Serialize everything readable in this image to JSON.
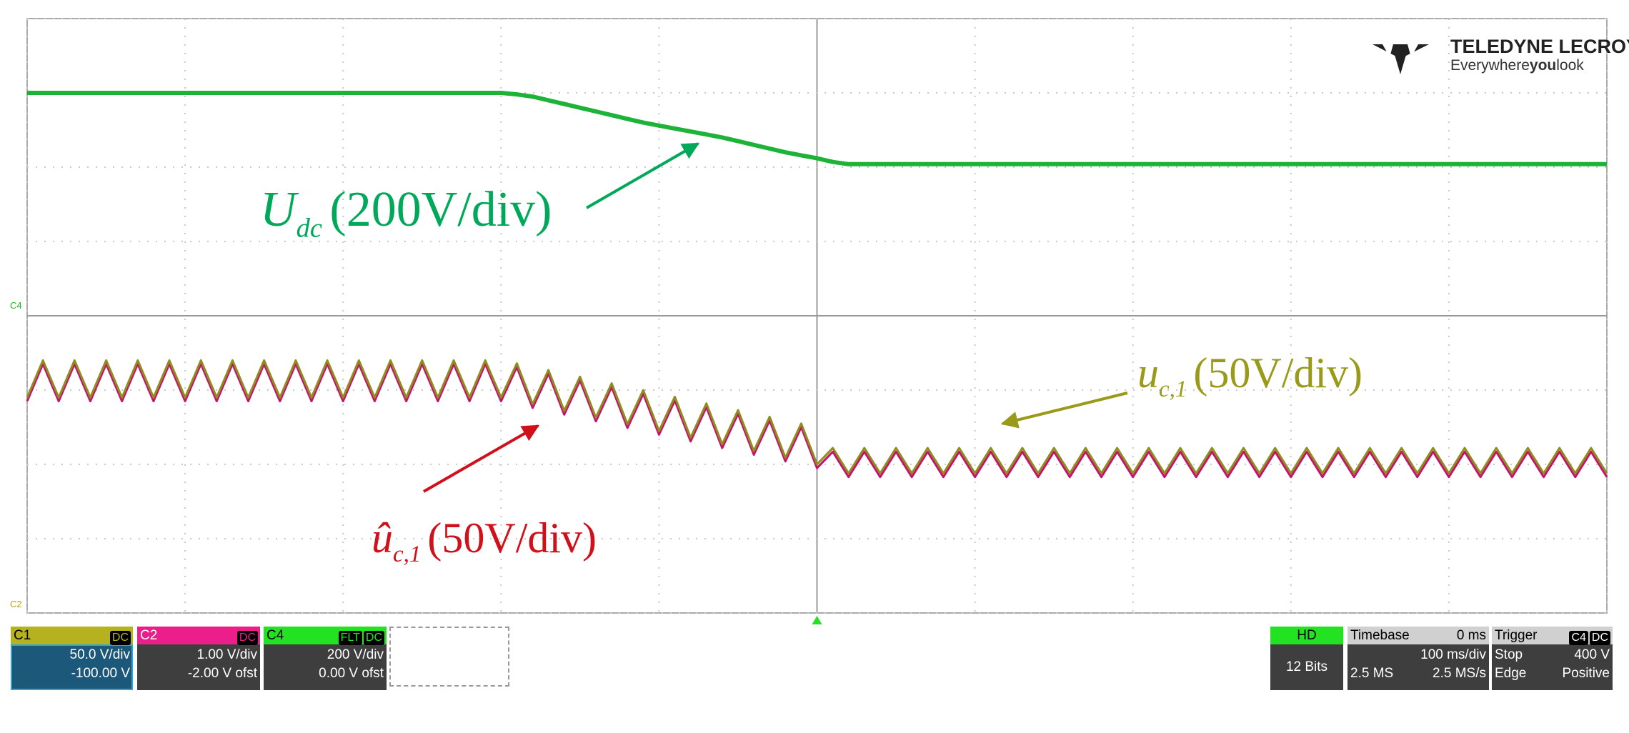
{
  "chart_data": {
    "type": "line",
    "x": [
      0,
      0.1,
      0.2,
      0.3,
      0.4,
      0.5,
      0.6,
      0.7,
      0.8,
      0.9,
      1,
      1.1,
      1.2,
      1.3,
      1.4,
      1.5,
      1.6,
      1.7,
      1.8,
      1.9,
      2,
      2.1,
      2.2,
      2.3,
      2.4,
      2.5,
      2.6,
      2.7,
      2.8,
      2.9,
      3,
      3.1,
      3.2,
      3.3,
      3.4,
      3.5,
      3.6,
      3.7,
      3.8,
      3.9,
      4,
      4.1,
      4.2,
      4.3,
      4.4,
      4.5,
      4.6,
      4.7,
      4.8,
      4.9,
      5,
      5.1,
      5.2,
      5.3,
      5.4,
      5.5,
      5.6,
      5.7,
      5.8,
      5.9,
      6,
      6.1,
      6.2,
      6.3,
      6.4,
      6.5,
      6.6,
      6.7,
      6.8,
      6.9,
      7,
      7.1,
      7.2,
      7.3,
      7.4,
      7.5,
      7.6,
      7.7,
      7.8,
      7.9,
      8,
      8.1,
      8.2,
      8.3,
      8.4,
      8.5,
      8.6,
      8.7,
      8.8,
      8.9,
      9,
      9.1,
      9.2,
      9.3,
      9.4,
      9.5,
      9.6,
      9.7,
      9.8,
      9.9,
      10
    ],
    "series": [
      {
        "color": "#1db338",
        "values": [
          7,
          7,
          7,
          7,
          7,
          7,
          7,
          7,
          7,
          7,
          7,
          7,
          7,
          7,
          7,
          7,
          7,
          7,
          7,
          7,
          7,
          7,
          7,
          7,
          7,
          7,
          7,
          7,
          7,
          7,
          7,
          6.98,
          6.95,
          6.9,
          6.85,
          6.8,
          6.75,
          6.7,
          6.65,
          6.6,
          6.56,
          6.52,
          6.48,
          6.44,
          6.4,
          6.35,
          6.3,
          6.25,
          6.2,
          6.16,
          6.12,
          6.07,
          6.04,
          6.04,
          6.04,
          6.04,
          6.04,
          6.04,
          6.04,
          6.04,
          6.04,
          6.04,
          6.04,
          6.04,
          6.04,
          6.04,
          6.04,
          6.04,
          6.04,
          6.04,
          6.04,
          6.04,
          6.04,
          6.04,
          6.04,
          6.04,
          6.04,
          6.04,
          6.04,
          6.04,
          6.04,
          6.04,
          6.04,
          6.04,
          6.04,
          6.04,
          6.04,
          6.04,
          6.04,
          6.04,
          6.04,
          6.04,
          6.04,
          6.04,
          6.04,
          6.04,
          6.04,
          6.04,
          6.04,
          6.04,
          6.04
        ]
      },
      {
        "color": "#c8106e",
        "values": [
          2.85,
          3.35,
          2.85,
          3.35,
          2.85,
          3.35,
          2.85,
          3.35,
          2.85,
          3.35,
          2.85,
          3.35,
          2.85,
          3.35,
          2.85,
          3.35,
          2.85,
          3.35,
          2.85,
          3.35,
          2.85,
          3.35,
          2.85,
          3.35,
          2.85,
          3.35,
          2.85,
          3.35,
          2.85,
          3.35,
          2.85,
          3.31,
          2.76,
          3.22,
          2.67,
          3.13,
          2.58,
          3.04,
          2.49,
          2.95,
          2.4,
          2.86,
          2.31,
          2.77,
          2.22,
          2.68,
          2.13,
          2.59,
          2.04,
          2.5,
          1.95,
          2.17,
          1.83,
          2.17,
          1.83,
          2.17,
          1.83,
          2.17,
          1.83,
          2.17,
          1.83,
          2.17,
          1.83,
          2.17,
          1.83,
          2.17,
          1.83,
          2.17,
          1.83,
          2.17,
          1.83,
          2.17,
          1.83,
          2.17,
          1.83,
          2.17,
          1.83,
          2.17,
          1.83,
          2.17,
          1.83,
          2.17,
          1.83,
          2.17,
          1.83,
          2.17,
          1.83,
          2.17,
          1.83,
          2.17,
          1.83,
          2.17,
          1.83,
          2.17,
          1.83,
          2.17,
          1.83,
          2.17,
          1.83,
          2.17,
          1.83
        ]
      },
      {
        "color": "#8e8e1e",
        "values": [
          2.9,
          3.4,
          2.9,
          3.4,
          2.9,
          3.4,
          2.9,
          3.4,
          2.9,
          3.4,
          2.9,
          3.4,
          2.9,
          3.4,
          2.9,
          3.4,
          2.9,
          3.4,
          2.9,
          3.4,
          2.9,
          3.4,
          2.9,
          3.4,
          2.9,
          3.4,
          2.9,
          3.4,
          2.9,
          3.4,
          2.9,
          3.36,
          2.81,
          3.27,
          2.72,
          3.18,
          2.63,
          3.09,
          2.54,
          3,
          2.45,
          2.91,
          2.36,
          2.82,
          2.27,
          2.73,
          2.18,
          2.64,
          2.09,
          2.55,
          2,
          2.22,
          1.88,
          2.22,
          1.88,
          2.22,
          1.88,
          2.22,
          1.88,
          2.22,
          1.88,
          2.22,
          1.88,
          2.22,
          1.88,
          2.22,
          1.88,
          2.22,
          1.88,
          2.22,
          1.88,
          2.22,
          1.88,
          2.22,
          1.88,
          2.22,
          1.88,
          2.22,
          1.88,
          2.22,
          1.88,
          2.22,
          1.88,
          2.22,
          1.88,
          2.22,
          1.88,
          2.22,
          1.88,
          2.22,
          1.88,
          2.22,
          1.88,
          2.22,
          1.88,
          2.22,
          1.88,
          2.22,
          1.88,
          2.22,
          1.88
        ]
      }
    ],
    "xlim": [
      0,
      10
    ],
    "ylim": [
      0,
      8
    ],
    "xticks": [
      0,
      1,
      2,
      3,
      4,
      5,
      6,
      7,
      8,
      9,
      10
    ],
    "yticks": [
      0,
      1,
      2,
      3,
      4,
      5,
      6,
      7,
      8
    ],
    "grid": true,
    "annotations": [
      {
        "symbol": "U",
        "subscript": "dc",
        "text": "(200V/div)",
        "color": "#00a859"
      },
      {
        "symbol": "u",
        "subscript": "c,1",
        "text": "(50V/div)",
        "color": "#9a9a1a"
      },
      {
        "symbol": "û",
        "subscript": "c,1",
        "text": "(50V/div)",
        "color": "#d0101a"
      }
    ],
    "channel_markers": [
      "C4",
      "C2"
    ]
  },
  "logo": {
    "brand": "TELEDYNE LECROY",
    "tagline_start": "Everywhere",
    "tagline_bold": "you",
    "tagline_end": "look"
  },
  "scope_panel": {
    "channels": [
      {
        "label": "C1",
        "badges": [
          "DC"
        ],
        "scale": "50.0 V/div",
        "offset": "-100.00 V"
      },
      {
        "label": "C2",
        "badges": [
          "DC"
        ],
        "scale": "1.00 V/div",
        "offset": "-2.00 V ofst"
      },
      {
        "label": "C4",
        "badges": [
          "FLT",
          "DC"
        ],
        "scale": "200 V/div",
        "offset": "0.00 V ofst"
      }
    ],
    "hd": {
      "label": "HD",
      "bits": "12 Bits"
    },
    "timebase": {
      "label": "Timebase",
      "delay": "0 ms",
      "scale": "100 ms/div",
      "samples": "2.5 MS",
      "rate": "2.5 MS/s"
    },
    "trigger": {
      "label": "Trigger",
      "badges": [
        "C4",
        "DC"
      ],
      "mode": "Stop",
      "level": "400 V",
      "kind": "Edge",
      "slope": "Positive"
    }
  }
}
